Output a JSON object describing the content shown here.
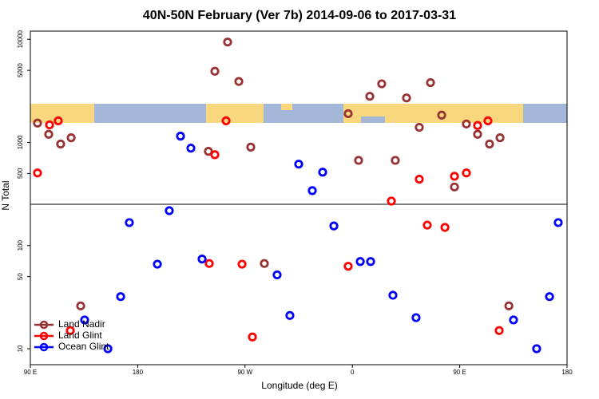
{
  "chart_data": {
    "type": "scatter",
    "title": "40N-50N February (Ver 7b)   2014-09-06 to 2017-03-31",
    "x_label": "Longitude (deg E)",
    "y_label": "N Total",
    "xlim": [
      90,
      540
    ],
    "xticks": [
      {
        "value": 90,
        "label": "90 E"
      },
      180,
      {
        "value": 270,
        "label": "90 W"
      },
      {
        "value": 360,
        "label": "0"
      },
      {
        "value": 450,
        "label": "90 E"
      },
      {
        "value": 540,
        "label": "180"
      }
    ],
    "ylim": [
      7,
      12000
    ],
    "yticks": [
      10,
      50,
      100,
      500,
      1000,
      5000,
      10000
    ],
    "log_y": true,
    "grid": false,
    "legend": "lower left",
    "series": [
      {
        "name": "Land Nadir",
        "color": "#993333",
        "x": [
          96,
          105.4,
          115.4,
          124.2,
          132.2,
          239.3,
          244.7,
          255.4,
          264.8,
          274.8,
          286.2,
          356.5,
          365.2,
          374.6,
          384.6,
          396,
          405.4,
          416.1,
          425.5,
          434.9,
          445.6,
          455.6,
          465,
          475,
          483.8,
          491.2
        ],
        "values": [
          1540,
          1200,
          965,
          1110,
          26,
          820,
          4900,
          9400,
          3900,
          900,
          67,
          1900,
          670,
          2800,
          3700,
          670,
          2700,
          1400,
          3800,
          1840,
          370,
          1510,
          1200,
          965,
          1110,
          26
        ]
      },
      {
        "name": "Land Glint",
        "color": "#ff0000",
        "x": [
          96,
          106.1,
          113.4,
          123.5,
          244.7,
          240,
          254.1,
          267.5,
          276.2,
          356.5,
          392.7,
          416.1,
          422.8,
          437.6,
          445.6,
          455.6,
          465,
          473.7,
          483.1
        ],
        "values": [
          506,
          1480,
          1620,
          15,
          760,
          67,
          1620,
          66,
          13,
          63,
          270,
          440,
          158,
          150,
          470,
          506,
          1460,
          1620,
          15
        ]
      },
      {
        "name": "Ocean Glint",
        "color": "#0000ff",
        "x": [
          135.5,
          155,
          165.7,
          173,
          196.5,
          206.5,
          215.9,
          224.6,
          234,
          296.9,
          307.6,
          315,
          326.4,
          335.1,
          344.5,
          366.6,
          375.3,
          394,
          413.4,
          495.1,
          514.5,
          525.3,
          532.6
        ],
        "values": [
          19,
          10,
          32,
          167,
          66,
          218,
          1150,
          880,
          74,
          52,
          21,
          616,
          341,
          515,
          155,
          70,
          70,
          33,
          20,
          19,
          10,
          32,
          167
        ]
      }
    ]
  }
}
